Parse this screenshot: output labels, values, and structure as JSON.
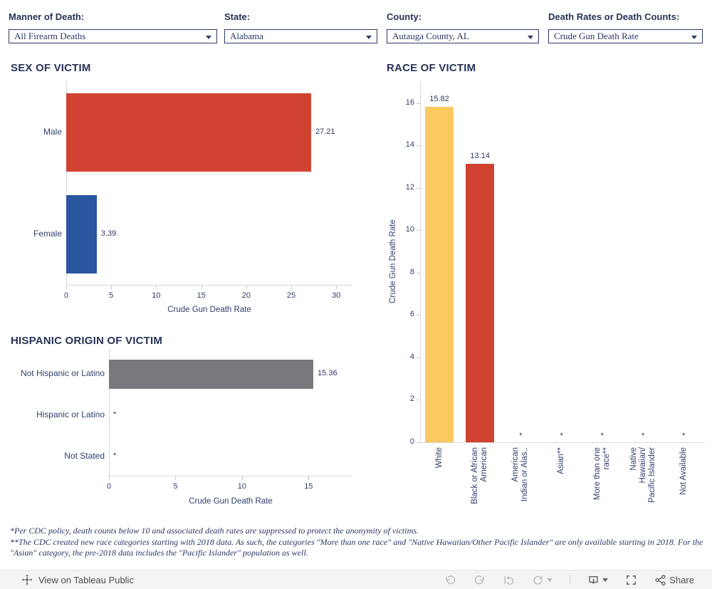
{
  "filters": [
    {
      "label": "Manner of Death:",
      "value": "All Firearm Deaths"
    },
    {
      "label": "State:",
      "value": "Alabama"
    },
    {
      "label": "County:",
      "value": "Autauga County, AL"
    },
    {
      "label": "Death Rates or Death Counts:",
      "value": "Crude Gun Death Rate"
    }
  ],
  "chart_data": [
    {
      "id": "sex",
      "type": "bar",
      "orientation": "horizontal",
      "title": "SEX OF VICTIM",
      "categories": [
        "Male",
        "Female"
      ],
      "values": [
        27.21,
        3.39
      ],
      "value_labels": [
        "27.21",
        "3.39"
      ],
      "bar_colors": [
        "#d04330",
        "#2a559f"
      ],
      "xlabel": "Crude Gun Death Rate",
      "xticks": [
        0,
        5,
        10,
        15,
        20,
        25,
        30
      ],
      "xlim": [
        0,
        31.8
      ],
      "grid": false
    },
    {
      "id": "hispanic",
      "type": "bar",
      "orientation": "horizontal",
      "title": "HISPANIC ORIGIN OF VICTIM",
      "categories": [
        "Not Hispanic or Latino",
        "Hispanic or Latino",
        "Not Stated"
      ],
      "values": [
        15.36,
        null,
        null
      ],
      "value_labels": [
        "15.36",
        "*",
        "*"
      ],
      "bar_colors": [
        "#77797c",
        "#77797c",
        "#77797c"
      ],
      "xlabel": "Crude Gun Death Rate",
      "xticks": [
        0,
        5,
        10,
        15
      ],
      "xlim": [
        0,
        18.3
      ],
      "grid": false
    },
    {
      "id": "race",
      "type": "bar",
      "orientation": "vertical",
      "title": "RACE OF VICTIM",
      "categories": [
        "White",
        "Black or African American",
        "American Indian or Alas..",
        "Asian**",
        "More than one race**",
        "Native Hawaiian/ Pacific Islander",
        "Not Available"
      ],
      "category_lines": [
        [
          "White"
        ],
        [
          "Black or African",
          "American"
        ],
        [
          "American",
          "Indian or Alas.."
        ],
        [
          "Asian**"
        ],
        [
          "More than one",
          "race**"
        ],
        [
          "Native",
          "Hawaiian/",
          "Pacific Islander"
        ],
        [
          "Not Available"
        ]
      ],
      "values": [
        15.82,
        13.14,
        null,
        null,
        null,
        null,
        null
      ],
      "value_labels": [
        "15.82",
        "13.14",
        "*",
        "*",
        "*",
        "*",
        "*"
      ],
      "bar_colors": [
        "#fcc860",
        "#d04330",
        null,
        null,
        null,
        null,
        null
      ],
      "ylabel": "Crude Gun Death Rate",
      "yticks": [
        0,
        2,
        4,
        6,
        8,
        10,
        12,
        14,
        16
      ],
      "ylim": [
        0,
        17
      ],
      "grid": false
    }
  ],
  "footnotes": [
    "*Per CDC policy, death counts below 10 and associated death rates are suppressed to protect the anonymity of victims.",
    "**The CDC created new race categories starting with 2018 data. As such, the categories \"More than one race\" and \"Native Hawaiian/Other Pacific Islander\" are only available starting in 2018. For the \"Asian\" category, the pre-2018 data includes the \"Pacific Islander\" population as well."
  ],
  "toolbar": {
    "view_on": "View on Tableau Public",
    "share_label": "Share"
  },
  "colors": {
    "accent_navy": "#283457",
    "male_red": "#d04330",
    "female_blue": "#2a559f",
    "white_yellow": "#fcc860",
    "suppressed_gray": "#77797c",
    "toolbar_bg": "#f4f4f4"
  }
}
